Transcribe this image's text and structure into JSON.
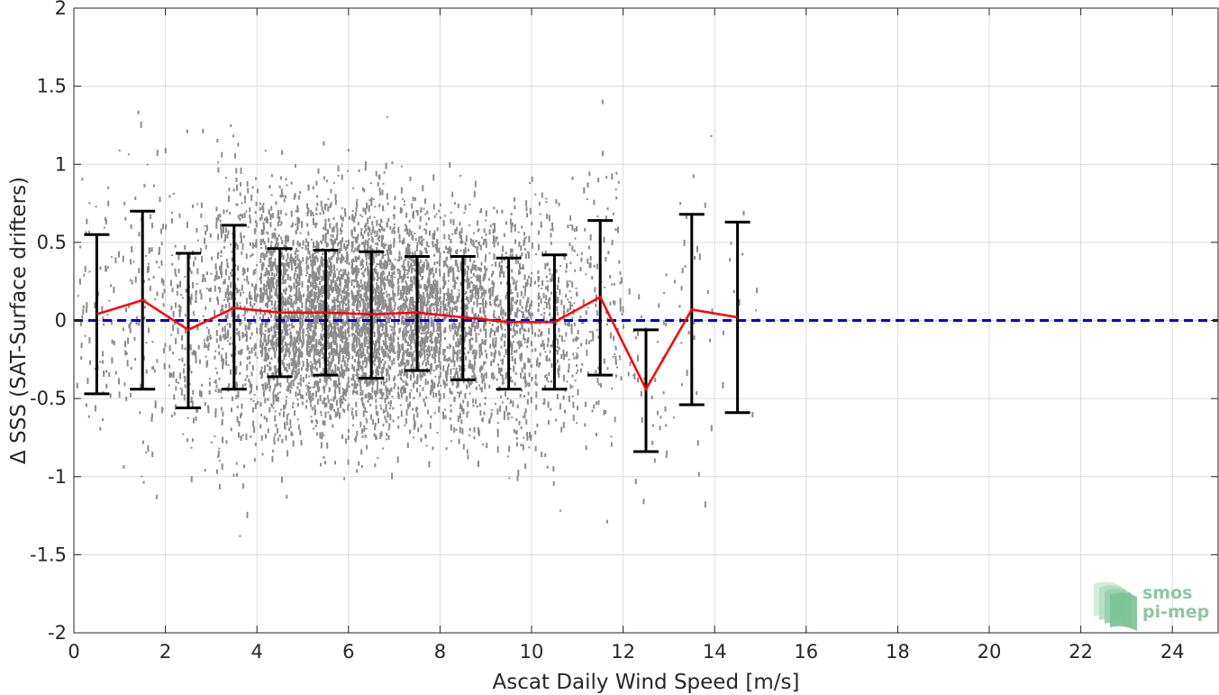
{
  "chart_data": {
    "type": "scatter",
    "xlabel": "Ascat Daily Wind Speed [m/s]",
    "ylabel": "Δ SSS (SAT-Surface drifters)",
    "xlim": [
      0,
      25
    ],
    "ylim": [
      -2,
      2
    ],
    "x_ticks": [
      0,
      2,
      4,
      6,
      8,
      10,
      12,
      14,
      16,
      18,
      20,
      22,
      24
    ],
    "y_ticks": [
      -2,
      -1.5,
      -1,
      -0.5,
      0,
      0.5,
      1,
      1.5,
      2
    ],
    "y_tick_labels": [
      "-2",
      "-1.5",
      "-1",
      "-0.5",
      "0",
      "0.5",
      "1",
      "1.5",
      "2"
    ],
    "grid": true,
    "scatter": {
      "description": "gray individual matchup points",
      "color": "#8c8c8c",
      "x_range": [
        0.3,
        15.0
      ],
      "y_center_by_bin": [
        0.04,
        0.13,
        -0.06,
        0.08,
        0.05,
        0.05,
        0.04,
        0.05,
        0.02,
        -0.01,
        -0.01,
        0.15,
        -0.44,
        0.07,
        0.02
      ],
      "y_spread_by_bin": [
        0.5,
        0.57,
        0.49,
        0.52,
        0.41,
        0.4,
        0.41,
        0.36,
        0.4,
        0.42,
        0.43,
        0.5,
        0.39,
        0.61,
        0.61
      ],
      "count_by_bin": [
        70,
        110,
        180,
        400,
        900,
        1100,
        1100,
        900,
        600,
        420,
        260,
        130,
        40,
        30,
        12
      ]
    },
    "binned_mean": {
      "color": "#ff0000",
      "x": [
        0.5,
        1.5,
        2.5,
        3.5,
        4.5,
        5.5,
        6.5,
        7.5,
        8.5,
        9.5,
        10.5,
        11.5,
        12.5,
        13.5,
        14.5
      ],
      "y": [
        0.04,
        0.13,
        -0.06,
        0.08,
        0.05,
        0.05,
        0.04,
        0.05,
        0.02,
        -0.01,
        -0.01,
        0.15,
        -0.44,
        0.07,
        0.02
      ]
    },
    "error_bars": {
      "color": "#000000",
      "x": [
        0.5,
        1.5,
        2.5,
        3.5,
        4.5,
        5.5,
        6.5,
        7.5,
        8.5,
        9.5,
        10.5,
        11.5,
        12.5,
        13.5,
        14.5
      ],
      "upper": [
        0.55,
        0.7,
        0.43,
        0.61,
        0.46,
        0.45,
        0.44,
        0.41,
        0.41,
        0.4,
        0.42,
        0.64,
        -0.06,
        0.68,
        0.63
      ],
      "lower": [
        -0.47,
        -0.44,
        -0.56,
        -0.44,
        -0.36,
        -0.35,
        -0.37,
        -0.32,
        -0.38,
        -0.44,
        -0.44,
        -0.35,
        -0.84,
        -0.54,
        -0.59
      ]
    },
    "zero_line": {
      "y": 0,
      "color": "#0000dd",
      "style": "dashed"
    }
  },
  "logo": {
    "line1": "smos",
    "line2": "pi-mep"
  }
}
